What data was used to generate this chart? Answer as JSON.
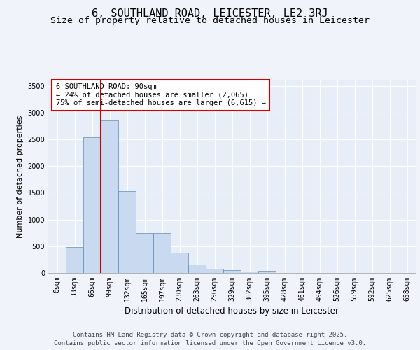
{
  "title": "6, SOUTHLAND ROAD, LEICESTER, LE2 3RJ",
  "subtitle": "Size of property relative to detached houses in Leicester",
  "xlabel": "Distribution of detached houses by size in Leicester",
  "ylabel": "Number of detached properties",
  "bar_color": "#c9d9f0",
  "bar_edge_color": "#5b8db8",
  "background_color": "#e8eef8",
  "grid_color": "#ffffff",
  "fig_background": "#f0f4fa",
  "categories": [
    "0sqm",
    "33sqm",
    "66sqm",
    "99sqm",
    "132sqm",
    "165sqm",
    "197sqm",
    "230sqm",
    "263sqm",
    "296sqm",
    "329sqm",
    "362sqm",
    "395sqm",
    "428sqm",
    "461sqm",
    "494sqm",
    "526sqm",
    "559sqm",
    "592sqm",
    "625sqm",
    "658sqm"
  ],
  "values": [
    5,
    480,
    2540,
    2850,
    1530,
    740,
    740,
    380,
    155,
    75,
    55,
    30,
    45,
    5,
    5,
    5,
    5,
    5,
    5,
    5,
    5
  ],
  "ylim": [
    0,
    3600
  ],
  "yticks": [
    0,
    500,
    1000,
    1500,
    2000,
    2500,
    3000,
    3500
  ],
  "vline_x": 2.5,
  "vline_color": "#cc0000",
  "annotation_text": "6 SOUTHLAND ROAD: 90sqm\n← 24% of detached houses are smaller (2,065)\n75% of semi-detached houses are larger (6,615) →",
  "footer_text": "Contains HM Land Registry data © Crown copyright and database right 2025.\nContains public sector information licensed under the Open Government Licence v3.0.",
  "title_fontsize": 11,
  "subtitle_fontsize": 9.5,
  "xlabel_fontsize": 8.5,
  "ylabel_fontsize": 8,
  "tick_fontsize": 7,
  "annotation_fontsize": 7.5,
  "footer_fontsize": 6.5
}
